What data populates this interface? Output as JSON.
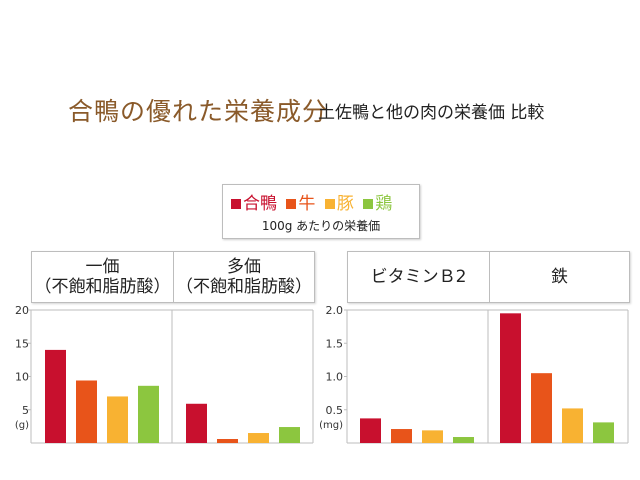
{
  "title": {
    "main": "合鴨の優れた栄養成分",
    "sub": "土佐鴨と他の肉の栄養価 比較"
  },
  "legend": {
    "items": [
      {
        "label": "合鴨",
        "color": "#c8102e"
      },
      {
        "label": "牛",
        "color": "#e8541a"
      },
      {
        "label": "豚",
        "color": "#f8b232"
      },
      {
        "label": "鶏",
        "color": "#8cc63f"
      }
    ],
    "note": "100g あたりの栄養価"
  },
  "headers": {
    "left": [
      "一価\n（不飽和脂肪酸）",
      "多価\n（不飽和脂肪酸）"
    ],
    "right": [
      "ビタミンＢ2",
      "鉄"
    ]
  },
  "chart_data": [
    {
      "type": "bar",
      "ylabel": "(g)",
      "ylim": [
        0,
        20
      ],
      "yticks": [
        5,
        10,
        15,
        20
      ],
      "categories": [
        "一価（不飽和脂肪酸）",
        "多価（不飽和脂肪酸）"
      ],
      "series": [
        {
          "name": "合鴨",
          "color": "#c8102e",
          "values": [
            14.0,
            5.9
          ]
        },
        {
          "name": "牛",
          "color": "#e8541a",
          "values": [
            9.4,
            0.6
          ]
        },
        {
          "name": "豚",
          "color": "#f8b232",
          "values": [
            7.0,
            1.5
          ]
        },
        {
          "name": "鶏",
          "color": "#8cc63f",
          "values": [
            8.6,
            2.4
          ]
        }
      ]
    },
    {
      "type": "bar",
      "ylabel": "(mg)",
      "ylim": [
        0,
        2.0
      ],
      "yticks": [
        "0.5",
        "1.0",
        "1.5",
        "2.0"
      ],
      "categories": [
        "ビタミンＢ2",
        "鉄"
      ],
      "series": [
        {
          "name": "合鴨",
          "color": "#c8102e",
          "values": [
            0.37,
            1.95
          ]
        },
        {
          "name": "牛",
          "color": "#e8541a",
          "values": [
            0.21,
            1.05
          ]
        },
        {
          "name": "豚",
          "color": "#f8b232",
          "values": [
            0.19,
            0.52
          ]
        },
        {
          "name": "鶏",
          "color": "#8cc63f",
          "values": [
            0.09,
            0.31
          ]
        }
      ]
    }
  ]
}
